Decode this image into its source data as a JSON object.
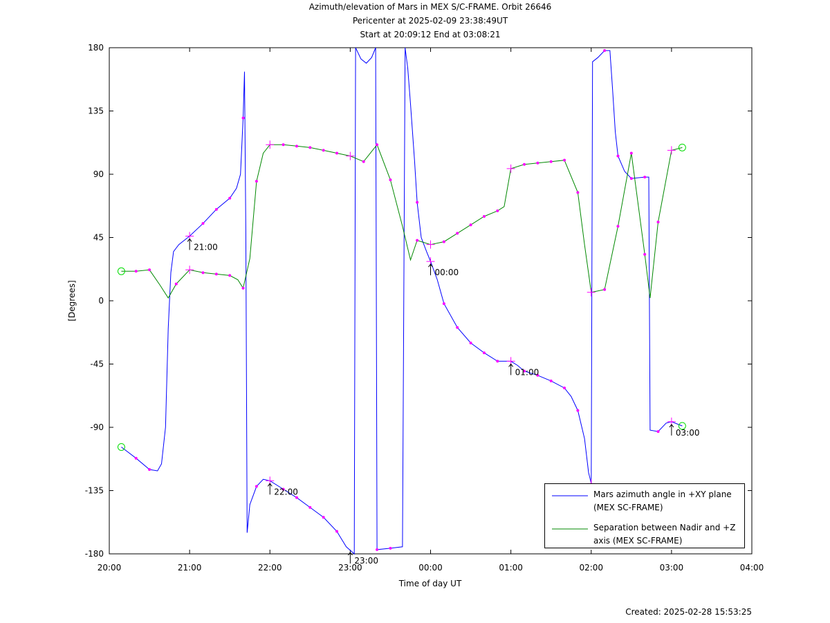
{
  "chart_data": {
    "type": "line",
    "title": "Azimuth/elevation of Mars in MEX S/C-FRAME.  Orbit 26646",
    "subtitle": "Pericenter at 2025-02-09 23:38:49UT",
    "subtitle2": "Start at 20:09:12 End at 03:08:21",
    "xlabel": "Time of day UT",
    "ylabel": "[Degrees]",
    "footer": "Created: 2025-02-28 15:53:25",
    "xlim": [
      "20:00",
      "04:00"
    ],
    "xticks": [
      "20:00",
      "21:00",
      "22:00",
      "23:00",
      "00:00",
      "01:00",
      "02:00",
      "03:00",
      "04:00"
    ],
    "ylim": [
      -180,
      180
    ],
    "yticks": [
      180,
      135,
      90,
      45,
      0,
      -45,
      -90,
      -135,
      -180
    ],
    "grid": false,
    "marker_color": "#ff00ff",
    "endpoint_color": "#00dd00",
    "series": [
      {
        "name": "Mars azimuth angle in +XY plane (MEX SC-FRAME)",
        "color": "#0000ff",
        "x": [
          "20:09",
          "20:20",
          "20:30",
          "20:36",
          "20:39",
          "20:42",
          "20:44",
          "20:46",
          "20:48",
          "20:52",
          "21:00",
          "21:10",
          "21:20",
          "21:30",
          "21:35",
          "21:38",
          "21:40",
          "21:41",
          "21:42",
          "21:43",
          "21:45",
          "21:50",
          "21:55",
          "22:00",
          "22:10",
          "22:20",
          "22:30",
          "22:40",
          "22:50",
          "22:57",
          "23:03",
          "23:04",
          "23:08",
          "23:12",
          "23:16",
          "23:19",
          "23:20",
          "23:30",
          "23:39",
          "23:41",
          "23:43",
          "23:45",
          "23:48",
          "23:50",
          "23:53",
          "23:57",
          "00:00",
          "00:05",
          "00:10",
          "00:20",
          "00:30",
          "00:40",
          "00:50",
          "01:00",
          "01:05",
          "01:10",
          "01:20",
          "01:30",
          "01:40",
          "01:45",
          "01:50",
          "01:55",
          "01:58",
          "02:00",
          "02:01",
          "02:05",
          "02:10",
          "02:14",
          "02:16",
          "02:18",
          "02:20",
          "02:25",
          "02:30",
          "02:40",
          "02:43",
          "02:44",
          "02:50",
          "02:56",
          "03:00",
          "03:08"
        ],
        "values": [
          -104,
          -112,
          -120,
          -121,
          -116,
          -90,
          -20,
          20,
          35,
          40,
          46,
          55,
          65,
          73,
          80,
          90,
          130,
          163,
          50,
          -165,
          -145,
          -132,
          -127,
          -128,
          -134,
          -140,
          -147,
          -154,
          -164,
          -175,
          -180,
          180,
          172,
          169,
          173,
          180,
          -177,
          -176,
          -175,
          180,
          165,
          140,
          100,
          70,
          45,
          35,
          28,
          15,
          -2,
          -19,
          -30,
          -37,
          -43,
          -43,
          -46,
          -50,
          -53,
          -57,
          -62,
          -68,
          -78,
          -98,
          -122,
          -130,
          170,
          173,
          178,
          178,
          150,
          120,
          103,
          92,
          87,
          88,
          88,
          -92,
          -93,
          -87,
          -86,
          -89
        ]
      },
      {
        "name": "Separation between Nadir and +Z axis (MEX SC-FRAME)",
        "color": "#008800",
        "x": [
          "20:09",
          "20:20",
          "20:30",
          "20:38",
          "20:44",
          "20:50",
          "21:00",
          "21:10",
          "21:20",
          "21:30",
          "21:36",
          "21:40",
          "21:45",
          "21:50",
          "21:55",
          "22:00",
          "22:10",
          "22:20",
          "22:30",
          "22:40",
          "22:50",
          "23:00",
          "23:10",
          "23:20",
          "23:30",
          "23:39",
          "23:45",
          "23:50",
          "00:00",
          "00:10",
          "00:20",
          "00:30",
          "00:40",
          "00:50",
          "00:55",
          "01:00",
          "01:10",
          "01:20",
          "01:30",
          "01:40",
          "01:50",
          "01:55",
          "02:00",
          "02:10",
          "02:20",
          "02:30",
          "02:40",
          "02:44",
          "02:50",
          "03:00",
          "03:08"
        ],
        "values": [
          21,
          21,
          22,
          11,
          2,
          12,
          22,
          20,
          19,
          18,
          15,
          9,
          30,
          85,
          105,
          111,
          111,
          110,
          109,
          107,
          105,
          103,
          99,
          111,
          86,
          53,
          29,
          43,
          40,
          42,
          48,
          54,
          60,
          64,
          67,
          94,
          97,
          98,
          99,
          100,
          77,
          40,
          6,
          8,
          53,
          105,
          33,
          2,
          56,
          107,
          109
        ]
      }
    ],
    "annotations": [
      {
        "text": "21:00",
        "x": "21:00",
        "y": 46
      },
      {
        "text": "22:00",
        "x": "22:00",
        "y": -128
      },
      {
        "text": "23:00",
        "x": "23:00",
        "y": -177
      },
      {
        "text": "00:00",
        "x": "00:00",
        "y": 28
      },
      {
        "text": "01:00",
        "x": "01:00",
        "y": -43
      },
      {
        "text": "03:00",
        "x": "03:00",
        "y": -86
      }
    ]
  }
}
